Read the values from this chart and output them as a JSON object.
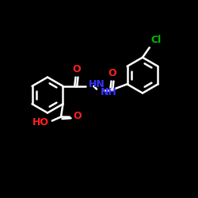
{
  "background": "#000000",
  "bond_color": "#ffffff",
  "bond_width": 1.8,
  "HN_color": "#3333ff",
  "O_color": "#ff2020",
  "Cl_color": "#00bb00",
  "fig_w": 2.5,
  "fig_h": 2.5,
  "dpi": 100,
  "xlim": [
    0,
    10
  ],
  "ylim": [
    0,
    10
  ]
}
